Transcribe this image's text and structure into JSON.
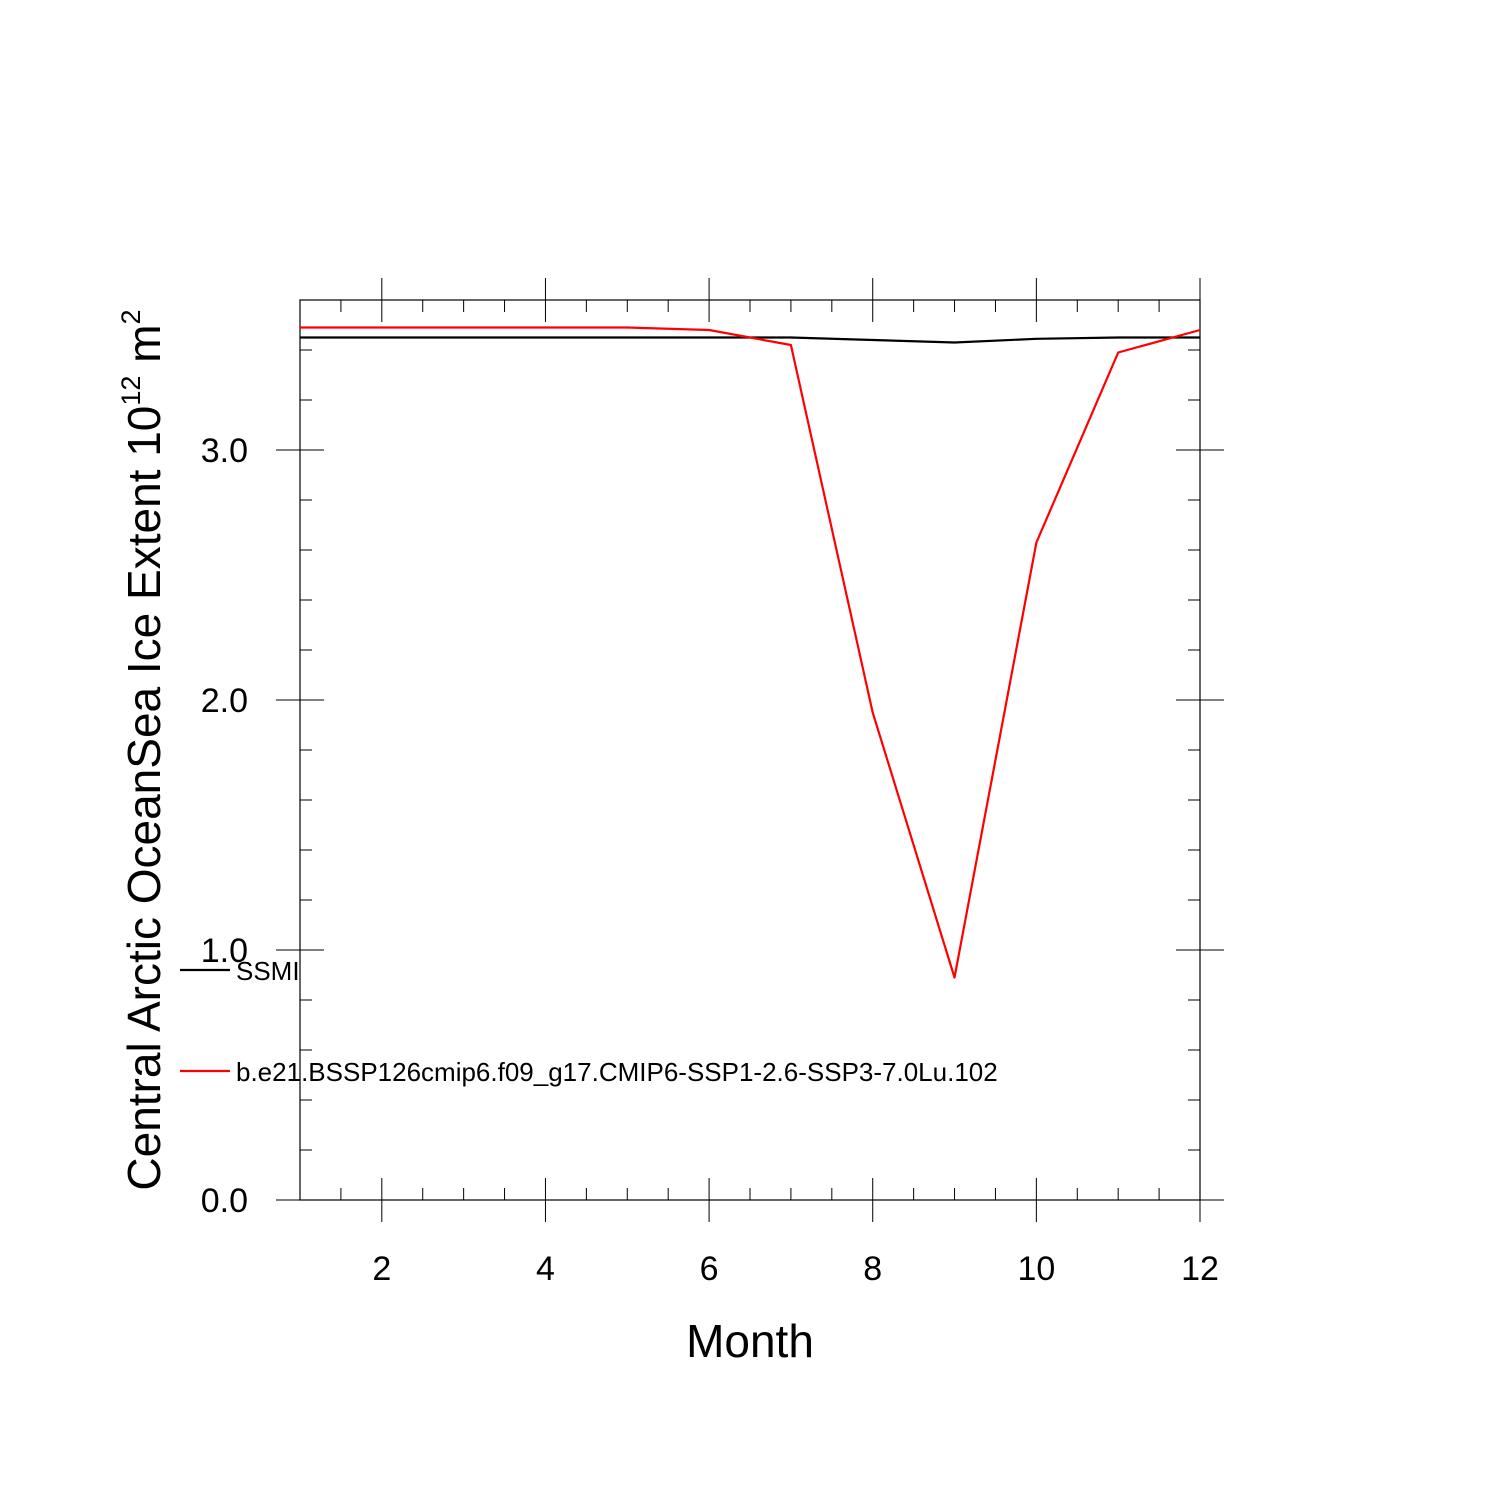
{
  "chart_data": {
    "type": "line",
    "title": "",
    "xlabel": "Month",
    "ylabel": {
      "main": "Central Arctic OceanSea Ice Extent 10",
      "exp": "12",
      "unit": " m",
      "unit_exp": "2"
    },
    "xlim": [
      1,
      12
    ],
    "ylim": [
      0,
      3.6
    ],
    "x_ticks": [
      2,
      4,
      6,
      8,
      10,
      12
    ],
    "x_tick_labels": [
      "2",
      "4",
      "6",
      "8",
      "10",
      "12"
    ],
    "y_ticks": [
      0,
      1,
      2,
      3
    ],
    "y_tick_labels": [
      "0.0",
      "1.0",
      "2.0",
      "3.0"
    ],
    "grid": false,
    "legend_position": "lower-left",
    "x": [
      1,
      2,
      3,
      4,
      5,
      6,
      7,
      8,
      9,
      10,
      11,
      12
    ],
    "series": [
      {
        "name": "SSMI",
        "color": "#000000",
        "values": [
          3.45,
          3.45,
          3.45,
          3.45,
          3.45,
          3.45,
          3.45,
          3.44,
          3.43,
          3.445,
          3.45,
          3.45
        ]
      },
      {
        "name": "b.e21.BSSP126cmip6.f09_g17.CMIP6-SSP1-2.6-SSP3-7.0Lu.102",
        "color": "#ff0000",
        "values": [
          3.49,
          3.49,
          3.49,
          3.49,
          3.49,
          3.48,
          3.42,
          1.95,
          0.89,
          2.63,
          3.39,
          3.48
        ]
      }
    ]
  }
}
